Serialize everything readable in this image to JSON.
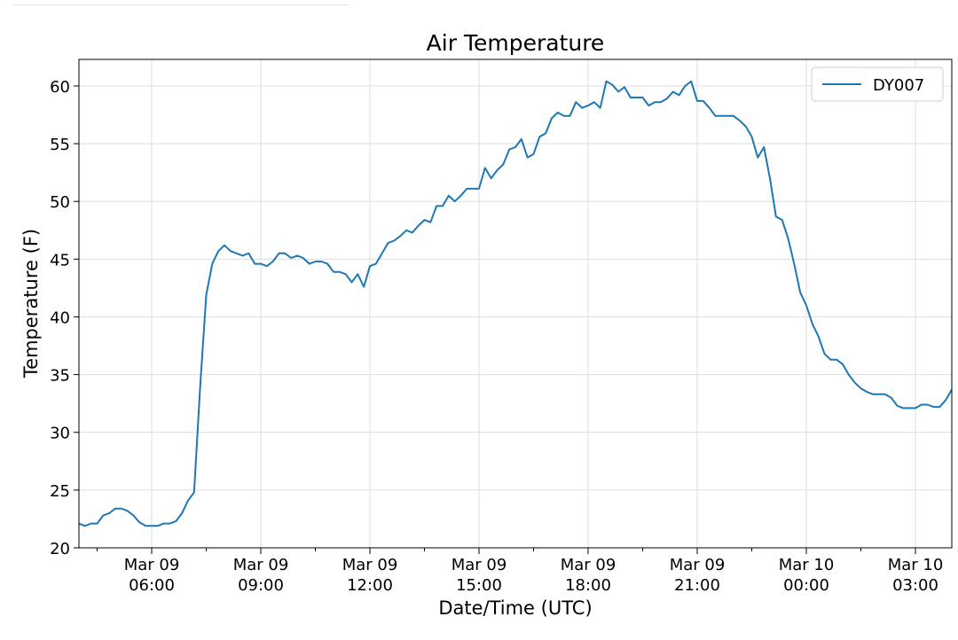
{
  "chart_data": {
    "type": "line",
    "title": "Air Temperature",
    "xlabel": "Date/Time (UTC)",
    "ylabel": "Temperature (F)",
    "ylim": [
      20,
      62.3
    ],
    "xlim": [
      "2024-03-09 04:00",
      "2024-03-10 04:00"
    ],
    "grid": true,
    "legend_position": "top-right",
    "x_ticks": [
      {
        "at": "2024-03-09 06:00",
        "line1": "Mar 09",
        "line2": "06:00"
      },
      {
        "at": "2024-03-09 09:00",
        "line1": "Mar 09",
        "line2": "09:00"
      },
      {
        "at": "2024-03-09 12:00",
        "line1": "Mar 09",
        "line2": "12:00"
      },
      {
        "at": "2024-03-09 15:00",
        "line1": "Mar 09",
        "line2": "15:00"
      },
      {
        "at": "2024-03-09 18:00",
        "line1": "Mar 09",
        "line2": "18:00"
      },
      {
        "at": "2024-03-09 21:00",
        "line1": "Mar 09",
        "line2": "21:00"
      },
      {
        "at": "2024-03-10 00:00",
        "line1": "Mar 10",
        "line2": "00:00"
      },
      {
        "at": "2024-03-10 03:00",
        "line1": "Mar 10",
        "line2": "03:00"
      }
    ],
    "y_ticks": [
      20,
      25,
      30,
      35,
      40,
      45,
      50,
      55,
      60
    ],
    "series": [
      {
        "name": "DY007",
        "color": "#1f77b4",
        "x": [
          "2024-03-09 04:00",
          "2024-03-09 04:10",
          "2024-03-09 04:20",
          "2024-03-09 04:30",
          "2024-03-09 04:40",
          "2024-03-09 04:50",
          "2024-03-09 05:00",
          "2024-03-09 05:10",
          "2024-03-09 05:20",
          "2024-03-09 05:30",
          "2024-03-09 05:40",
          "2024-03-09 05:50",
          "2024-03-09 06:00",
          "2024-03-09 06:10",
          "2024-03-09 06:20",
          "2024-03-09 06:30",
          "2024-03-09 06:40",
          "2024-03-09 06:50",
          "2024-03-09 07:00",
          "2024-03-09 07:10",
          "2024-03-09 07:20",
          "2024-03-09 07:30",
          "2024-03-09 07:40",
          "2024-03-09 07:50",
          "2024-03-09 08:00",
          "2024-03-09 08:10",
          "2024-03-09 08:20",
          "2024-03-09 08:30",
          "2024-03-09 08:40",
          "2024-03-09 08:50",
          "2024-03-09 09:00",
          "2024-03-09 09:10",
          "2024-03-09 09:20",
          "2024-03-09 09:30",
          "2024-03-09 09:40",
          "2024-03-09 09:50",
          "2024-03-09 10:00",
          "2024-03-09 10:10",
          "2024-03-09 10:20",
          "2024-03-09 10:30",
          "2024-03-09 10:40",
          "2024-03-09 10:50",
          "2024-03-09 11:00",
          "2024-03-09 11:10",
          "2024-03-09 11:20",
          "2024-03-09 11:30",
          "2024-03-09 11:40",
          "2024-03-09 11:50",
          "2024-03-09 12:00",
          "2024-03-09 12:10",
          "2024-03-09 12:20",
          "2024-03-09 12:30",
          "2024-03-09 12:40",
          "2024-03-09 12:50",
          "2024-03-09 13:00",
          "2024-03-09 13:10",
          "2024-03-09 13:20",
          "2024-03-09 13:30",
          "2024-03-09 13:40",
          "2024-03-09 13:50",
          "2024-03-09 14:00",
          "2024-03-09 14:10",
          "2024-03-09 14:20",
          "2024-03-09 14:30",
          "2024-03-09 14:40",
          "2024-03-09 14:50",
          "2024-03-09 15:00",
          "2024-03-09 15:10",
          "2024-03-09 15:20",
          "2024-03-09 15:30",
          "2024-03-09 15:40",
          "2024-03-09 15:50",
          "2024-03-09 16:00",
          "2024-03-09 16:10",
          "2024-03-09 16:20",
          "2024-03-09 16:30",
          "2024-03-09 16:40",
          "2024-03-09 16:50",
          "2024-03-09 17:00",
          "2024-03-09 17:10",
          "2024-03-09 17:20",
          "2024-03-09 17:30",
          "2024-03-09 17:40",
          "2024-03-09 17:50",
          "2024-03-09 18:00",
          "2024-03-09 18:10",
          "2024-03-09 18:20",
          "2024-03-09 18:30",
          "2024-03-09 18:40",
          "2024-03-09 18:50",
          "2024-03-09 19:00",
          "2024-03-09 19:10",
          "2024-03-09 19:20",
          "2024-03-09 19:30",
          "2024-03-09 19:40",
          "2024-03-09 19:50",
          "2024-03-09 20:00",
          "2024-03-09 20:10",
          "2024-03-09 20:20",
          "2024-03-09 20:30",
          "2024-03-09 20:40",
          "2024-03-09 20:50",
          "2024-03-09 21:00",
          "2024-03-09 21:10",
          "2024-03-09 21:20",
          "2024-03-09 21:30",
          "2024-03-09 21:40",
          "2024-03-09 21:50",
          "2024-03-09 22:00",
          "2024-03-09 22:10",
          "2024-03-09 22:20",
          "2024-03-09 22:30",
          "2024-03-09 22:40",
          "2024-03-09 22:50",
          "2024-03-09 23:00",
          "2024-03-09 23:10",
          "2024-03-09 23:20",
          "2024-03-09 23:30",
          "2024-03-09 23:40",
          "2024-03-09 23:50",
          "2024-03-10 00:00",
          "2024-03-10 00:10",
          "2024-03-10 00:20",
          "2024-03-10 00:30",
          "2024-03-10 00:40",
          "2024-03-10 00:50",
          "2024-03-10 01:00",
          "2024-03-10 01:10",
          "2024-03-10 01:20",
          "2024-03-10 01:30",
          "2024-03-10 01:40",
          "2024-03-10 01:50",
          "2024-03-10 02:00",
          "2024-03-10 02:10",
          "2024-03-10 02:20",
          "2024-03-10 02:30",
          "2024-03-10 02:40",
          "2024-03-10 02:50",
          "2024-03-10 03:00",
          "2024-03-10 03:10",
          "2024-03-10 03:20",
          "2024-03-10 03:30",
          "2024-03-10 03:40",
          "2024-03-10 03:50",
          "2024-03-10 04:00"
        ],
        "y": [
          22.1,
          21.9,
          22.1,
          22.1,
          22.8,
          23.0,
          23.4,
          23.4,
          23.2,
          22.8,
          22.2,
          21.9,
          21.9,
          21.9,
          22.1,
          22.1,
          22.3,
          23.0,
          24.1,
          24.8,
          34.0,
          41.9,
          44.6,
          45.7,
          46.2,
          45.7,
          45.5,
          45.3,
          45.5,
          44.6,
          44.6,
          44.4,
          44.8,
          45.5,
          45.5,
          45.1,
          45.3,
          45.1,
          44.6,
          44.8,
          44.8,
          44.6,
          43.9,
          43.9,
          43.7,
          43.0,
          43.7,
          42.6,
          44.4,
          44.6,
          45.5,
          46.4,
          46.6,
          47.0,
          47.5,
          47.3,
          47.9,
          48.4,
          48.2,
          49.6,
          49.6,
          50.5,
          50.0,
          50.5,
          51.1,
          51.1,
          51.1,
          52.9,
          52.0,
          52.7,
          53.2,
          54.5,
          54.7,
          55.4,
          53.8,
          54.1,
          55.6,
          55.9,
          57.2,
          57.7,
          57.4,
          57.4,
          58.6,
          58.1,
          58.3,
          58.6,
          58.1,
          60.4,
          60.1,
          59.5,
          59.9,
          59.0,
          59.0,
          59.0,
          58.3,
          58.6,
          58.6,
          58.9,
          59.5,
          59.2,
          60.0,
          60.4,
          58.7,
          58.7,
          58.1,
          57.4,
          57.4,
          57.4,
          57.4,
          57.0,
          56.5,
          55.6,
          53.8,
          54.7,
          52.0,
          48.7,
          48.4,
          46.8,
          44.6,
          42.1,
          41.0,
          39.4,
          38.3,
          36.8,
          36.3,
          36.3,
          35.9,
          35.0,
          34.3,
          33.8,
          33.5,
          33.3,
          33.3,
          33.3,
          33.0,
          32.3,
          32.1,
          32.1,
          32.1,
          32.4,
          32.4,
          32.2,
          32.2,
          32.8,
          33.7
        ]
      }
    ]
  }
}
